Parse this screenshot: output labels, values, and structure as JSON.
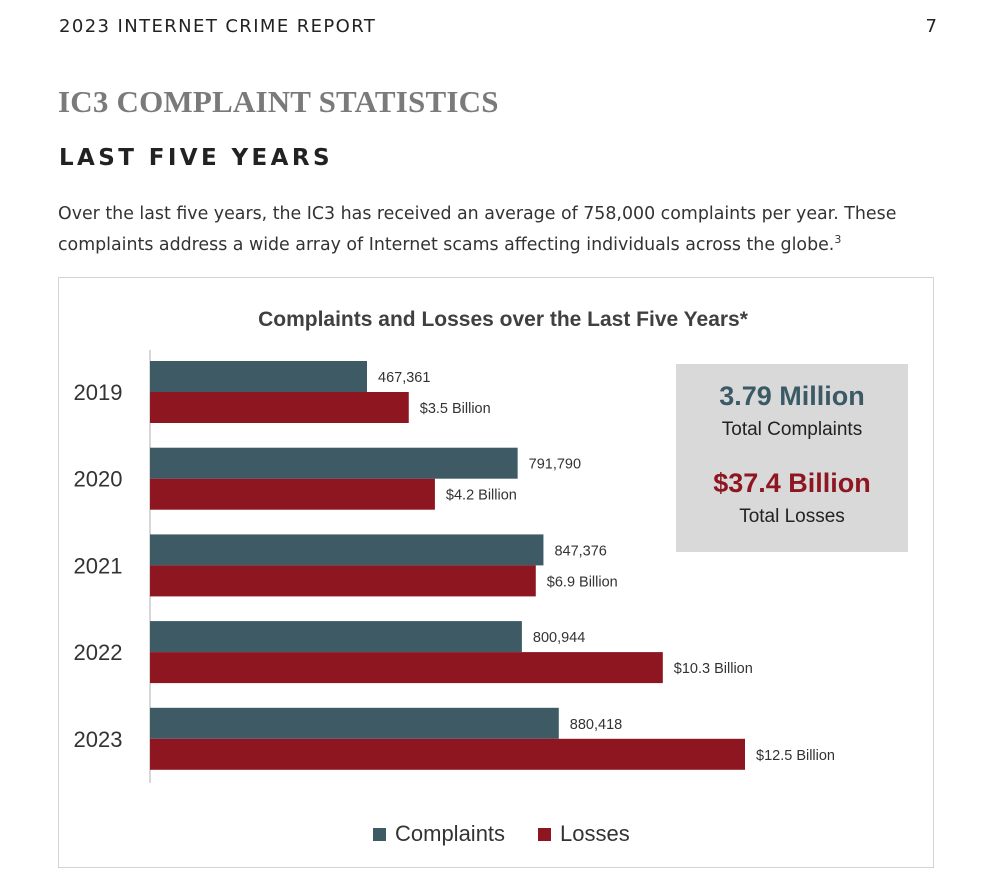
{
  "header": {
    "report_title": "2023 INTERNET CRIME REPORT",
    "page_number": "7"
  },
  "section": {
    "title": "IC3 COMPLAINT STATISTICS",
    "subtitle": "LAST FIVE YEARS",
    "intro_text": "Over the last five years, the IC3 has received an average of 758,000 complaints per year. These complaints address a wide array of Internet scams affecting individuals across the globe.",
    "footnote_marker": "3"
  },
  "summary": {
    "complaints_value": "3.79 Million",
    "complaints_label": "Total Complaints",
    "losses_value": "$37.4 Billion",
    "losses_label": "Total Losses"
  },
  "colors": {
    "complaints": "#3e5a65",
    "losses": "#8e1621"
  },
  "chart_data": {
    "type": "bar",
    "orientation": "horizontal",
    "title": "Complaints and Losses over the Last Five Years*",
    "categories": [
      "2019",
      "2020",
      "2021",
      "2022",
      "2023"
    ],
    "series": [
      {
        "name": "Complaints",
        "values": [
          467361,
          791790,
          847376,
          800944,
          880418
        ],
        "labels": [
          "467,361",
          "791,790",
          "847,376",
          "800,944",
          "880,418"
        ]
      },
      {
        "name": "Losses",
        "values": [
          3.5,
          4.2,
          6.9,
          10.3,
          12.5
        ],
        "labels": [
          "$3.5 Billion",
          "$4.2 Billion",
          "$6.9 Billion",
          "$10.3 Billion",
          "$12.5 Billion"
        ]
      }
    ],
    "legend_position": "bottom",
    "grid": false
  }
}
